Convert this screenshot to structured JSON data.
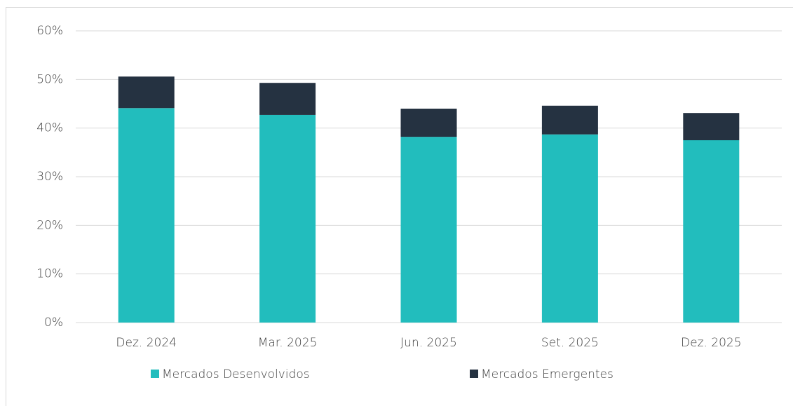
{
  "chart_data": {
    "type": "stacked_bar",
    "categories": [
      "Dez. 2024",
      "Mar. 2025",
      "Jun. 2025",
      "Set. 2025",
      "Dez. 2025"
    ],
    "series": [
      {
        "name": "Mercados Desenvolvidos",
        "color": "#22bdbd",
        "values": [
          44.1,
          42.7,
          38.2,
          38.7,
          37.5
        ]
      },
      {
        "name": "Mercados Emergentes",
        "color": "#253241",
        "values": [
          6.5,
          6.6,
          5.8,
          5.9,
          5.6
        ]
      }
    ],
    "ylim": [
      0,
      60
    ],
    "yticks": [
      {
        "value": 0,
        "label": "0%"
      },
      {
        "value": 10,
        "label": "10%"
      },
      {
        "value": 20,
        "label": "20%"
      },
      {
        "value": 30,
        "label": "30%"
      },
      {
        "value": 40,
        "label": "40%"
      },
      {
        "value": 50,
        "label": "50%"
      },
      {
        "value": 60,
        "label": "60%"
      }
    ],
    "grid": true,
    "legend": "bottom"
  }
}
